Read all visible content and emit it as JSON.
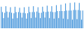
{
  "chart_data": {
    "type": "bar",
    "color": "#3b8fd9",
    "values": [
      80,
      60,
      38,
      58,
      82,
      62,
      40,
      60,
      78,
      58,
      36,
      56,
      80,
      60,
      38,
      60,
      76,
      58,
      40,
      58,
      78,
      56,
      36,
      56,
      80,
      60,
      38,
      60,
      82,
      60,
      40,
      62,
      78,
      58,
      38,
      58,
      80,
      62,
      40,
      60,
      84,
      62,
      38,
      62,
      82,
      60,
      36,
      60,
      86,
      64,
      38,
      64,
      88,
      64,
      36,
      64,
      92,
      66,
      34,
      66,
      94,
      66,
      32,
      68,
      96,
      68,
      34,
      68,
      94,
      66,
      32,
      66
    ],
    "ylim": [
      0,
      100
    ],
    "grid": false,
    "tick_labels": false
  }
}
